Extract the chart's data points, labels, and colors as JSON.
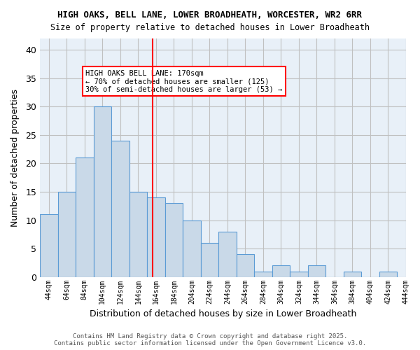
{
  "title_line1": "HIGH OAKS, BELL LANE, LOWER BROADHEATH, WORCESTER, WR2 6RR",
  "title_line2": "Size of property relative to detached houses in Lower Broadheath",
  "xlabel": "Distribution of detached houses by size in Lower Broadheath",
  "ylabel": "Number of detached properties",
  "bin_edges": [
    44,
    64,
    84,
    104,
    124,
    144,
    164,
    184,
    204,
    224,
    244,
    264,
    284,
    304,
    324,
    344,
    364,
    384,
    404,
    424,
    444
  ],
  "heights": [
    11,
    15,
    21,
    30,
    24,
    15,
    14,
    13,
    10,
    6,
    8,
    4,
    1,
    2,
    1,
    2,
    0,
    1,
    0,
    1
  ],
  "bar_facecolor": "#c9d9e8",
  "bar_edgecolor": "#5b9bd5",
  "vline_x": 170,
  "vline_color": "red",
  "annotation_text": "HIGH OAKS BELL LANE: 170sqm\n← 70% of detached houses are smaller (125)\n30% of semi-detached houses are larger (53) →",
  "annotation_box_color": "red",
  "ylim": [
    0,
    42
  ],
  "yticks": [
    0,
    5,
    10,
    15,
    20,
    25,
    30,
    35,
    40
  ],
  "grid_color": "#c0c0c0",
  "background_color": "#e8f0f8",
  "footer_text": "Contains HM Land Registry data © Crown copyright and database right 2025.\nContains public sector information licensed under the Open Government Licence v3.0.",
  "tick_labels": [
    "44sqm",
    "64sqm",
    "84sqm",
    "104sqm",
    "124sqm",
    "144sqm",
    "164sqm",
    "184sqm",
    "204sqm",
    "224sqm",
    "244sqm",
    "264sqm",
    "284sqm",
    "304sqm",
    "324sqm",
    "344sqm",
    "364sqm",
    "384sqm",
    "404sqm",
    "424sqm",
    "444sqm"
  ]
}
